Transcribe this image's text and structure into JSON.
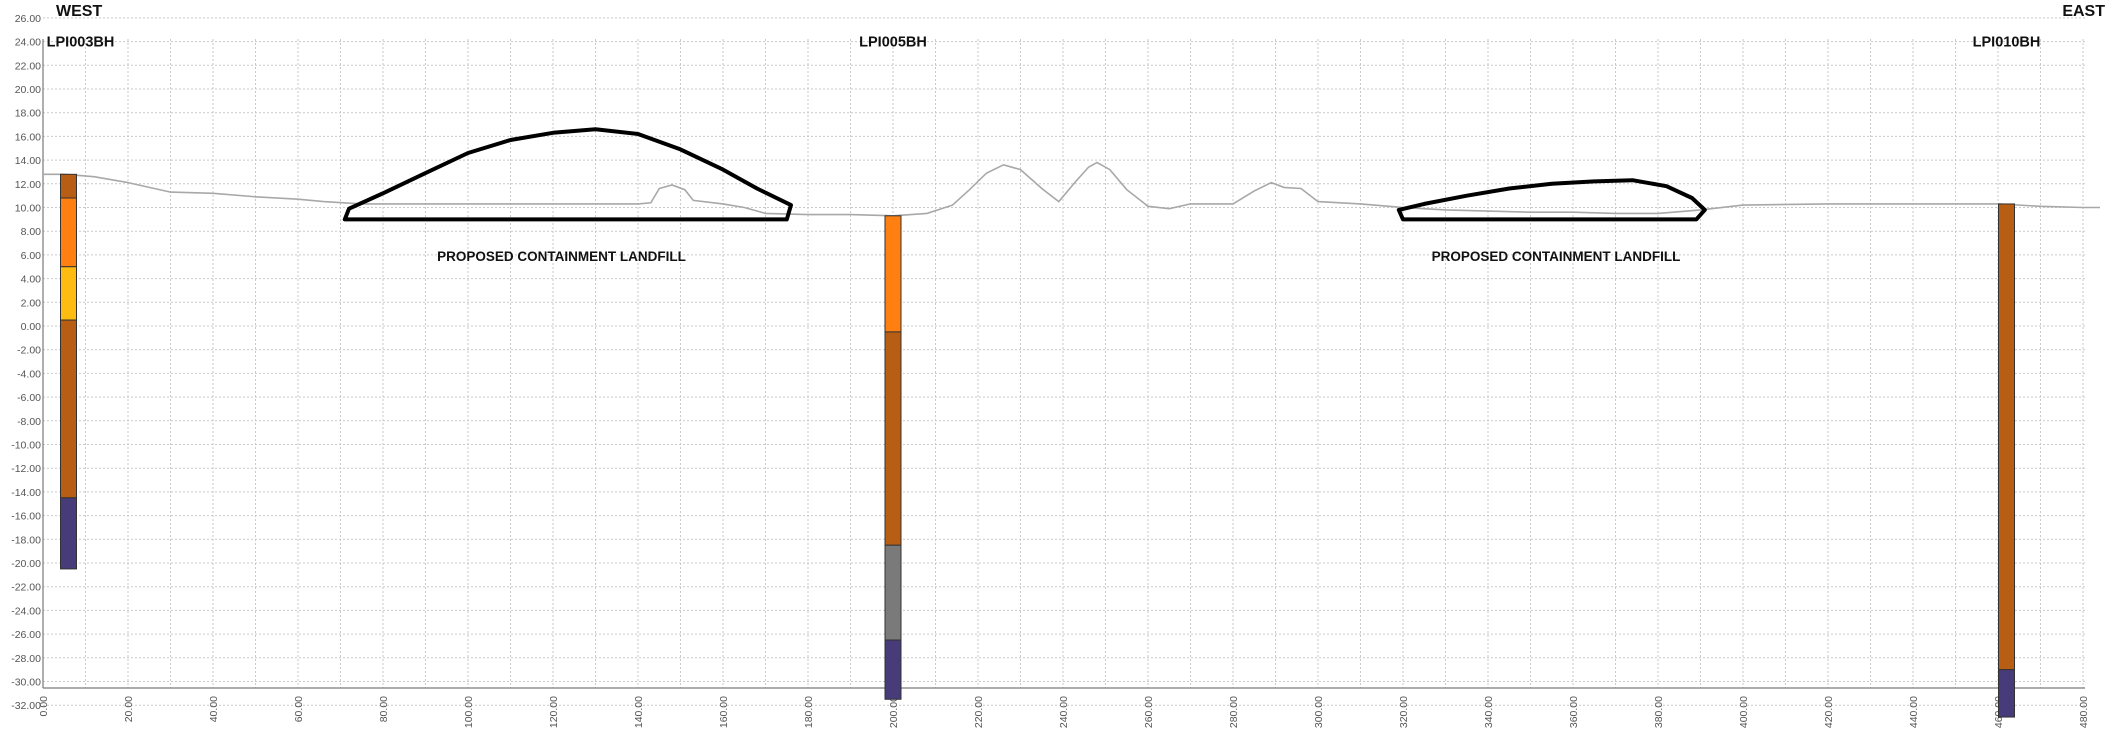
{
  "header": {
    "west": "WEST",
    "east": "EAST"
  },
  "axes": {
    "y_min": -32,
    "y_max": 28,
    "y_step": 2,
    "x_min": 0,
    "x_max": 480,
    "x_step": 10,
    "x_label_step": 20,
    "grid": true
  },
  "chart_data": {
    "type": "geological-cross-section",
    "ground_profile": [
      [
        0,
        12.8
      ],
      [
        5,
        12.8
      ],
      [
        12,
        12.6
      ],
      [
        20,
        12.1
      ],
      [
        30,
        11.3
      ],
      [
        40,
        11.2
      ],
      [
        50,
        10.9
      ],
      [
        60,
        10.7
      ],
      [
        66,
        10.5
      ],
      [
        75,
        10.3
      ],
      [
        90,
        10.3
      ],
      [
        100,
        10.3
      ],
      [
        110,
        10.3
      ],
      [
        120,
        10.3
      ],
      [
        130,
        10.3
      ],
      [
        140,
        10.3
      ],
      [
        143,
        10.4
      ],
      [
        145,
        11.6
      ],
      [
        148,
        11.9
      ],
      [
        151,
        11.5
      ],
      [
        153,
        10.6
      ],
      [
        160,
        10.3
      ],
      [
        165,
        10.0
      ],
      [
        170,
        9.5
      ],
      [
        180,
        9.4
      ],
      [
        190,
        9.4
      ],
      [
        200,
        9.3
      ],
      [
        208,
        9.5
      ],
      [
        214,
        10.2
      ],
      [
        218,
        11.5
      ],
      [
        222,
        12.9
      ],
      [
        226,
        13.6
      ],
      [
        230,
        13.2
      ],
      [
        235,
        11.6
      ],
      [
        239,
        10.5
      ],
      [
        243,
        12.2
      ],
      [
        246,
        13.4
      ],
      [
        248,
        13.8
      ],
      [
        251,
        13.2
      ],
      [
        255,
        11.5
      ],
      [
        260,
        10.1
      ],
      [
        265,
        9.9
      ],
      [
        270,
        10.3
      ],
      [
        280,
        10.3
      ],
      [
        285,
        11.4
      ],
      [
        289,
        12.1
      ],
      [
        292,
        11.7
      ],
      [
        296,
        11.6
      ],
      [
        300,
        10.5
      ],
      [
        310,
        10.3
      ],
      [
        320,
        10.0
      ],
      [
        330,
        9.8
      ],
      [
        340,
        9.7
      ],
      [
        350,
        9.6
      ],
      [
        360,
        9.6
      ],
      [
        370,
        9.5
      ],
      [
        380,
        9.5
      ],
      [
        390,
        9.8
      ],
      [
        400,
        10.2
      ],
      [
        420,
        10.3
      ],
      [
        440,
        10.3
      ],
      [
        460,
        10.3
      ],
      [
        470,
        10.1
      ],
      [
        480,
        10.0
      ],
      [
        484,
        10.0
      ]
    ],
    "landfills": [
      {
        "label": "PROPOSED CONTAINMENT LANDFILL",
        "label_x": 122,
        "label_y": 5.5,
        "outline": [
          [
            71,
            9.0
          ],
          [
            175,
            9.0
          ],
          [
            176,
            10.2
          ],
          [
            168,
            11.6
          ],
          [
            160,
            13.2
          ],
          [
            150,
            14.9
          ],
          [
            140,
            16.2
          ],
          [
            130,
            16.6
          ],
          [
            120,
            16.3
          ],
          [
            110,
            15.7
          ],
          [
            100,
            14.6
          ],
          [
            90,
            12.9
          ],
          [
            80,
            11.2
          ],
          [
            72,
            9.9
          ]
        ]
      },
      {
        "label": "PROPOSED CONTAINMENT LANDFILL",
        "label_x": 356,
        "label_y": 5.5,
        "outline": [
          [
            320,
            9.0
          ],
          [
            389,
            9.0
          ],
          [
            391,
            9.8
          ],
          [
            388,
            10.8
          ],
          [
            382,
            11.8
          ],
          [
            374,
            12.3
          ],
          [
            365,
            12.2
          ],
          [
            355,
            12.0
          ],
          [
            345,
            11.6
          ],
          [
            335,
            11.0
          ],
          [
            325,
            10.3
          ],
          [
            319,
            9.8
          ]
        ]
      }
    ],
    "boreholes": [
      {
        "name": "LPI003BH",
        "x": 6,
        "layers": [
          {
            "top": 12.8,
            "bottom": 10.8,
            "color": "#b85e14"
          },
          {
            "top": 10.8,
            "bottom": 5.0,
            "color": "#ff7f11"
          },
          {
            "top": 5.0,
            "bottom": 0.5,
            "color": "#ffbc10"
          },
          {
            "top": 0.5,
            "bottom": -14.5,
            "color": "#b85e14"
          },
          {
            "top": -14.5,
            "bottom": -20.5,
            "color": "#473b79"
          }
        ]
      },
      {
        "name": "LPI005BH",
        "x": 200,
        "layers": [
          {
            "top": 9.3,
            "bottom": -0.5,
            "color": "#ff7f11"
          },
          {
            "top": -0.5,
            "bottom": -18.5,
            "color": "#b85e14"
          },
          {
            "top": -18.5,
            "bottom": -26.5,
            "color": "#7a7a7a"
          },
          {
            "top": -26.5,
            "bottom": -31.5,
            "color": "#473b79"
          }
        ]
      },
      {
        "name": "LPI010BH",
        "x": 462,
        "layers": [
          {
            "top": 10.3,
            "bottom": -29.0,
            "color": "#b85e14"
          },
          {
            "top": -29.0,
            "bottom": -33.0,
            "color": "#473b79"
          }
        ]
      }
    ]
  },
  "colors": {
    "grid": "#c9c9c9",
    "axis": "#7a7a7a",
    "ground_line": "#a8a8a8",
    "landfill_outline": "#000000",
    "layer_border": "#333333"
  }
}
